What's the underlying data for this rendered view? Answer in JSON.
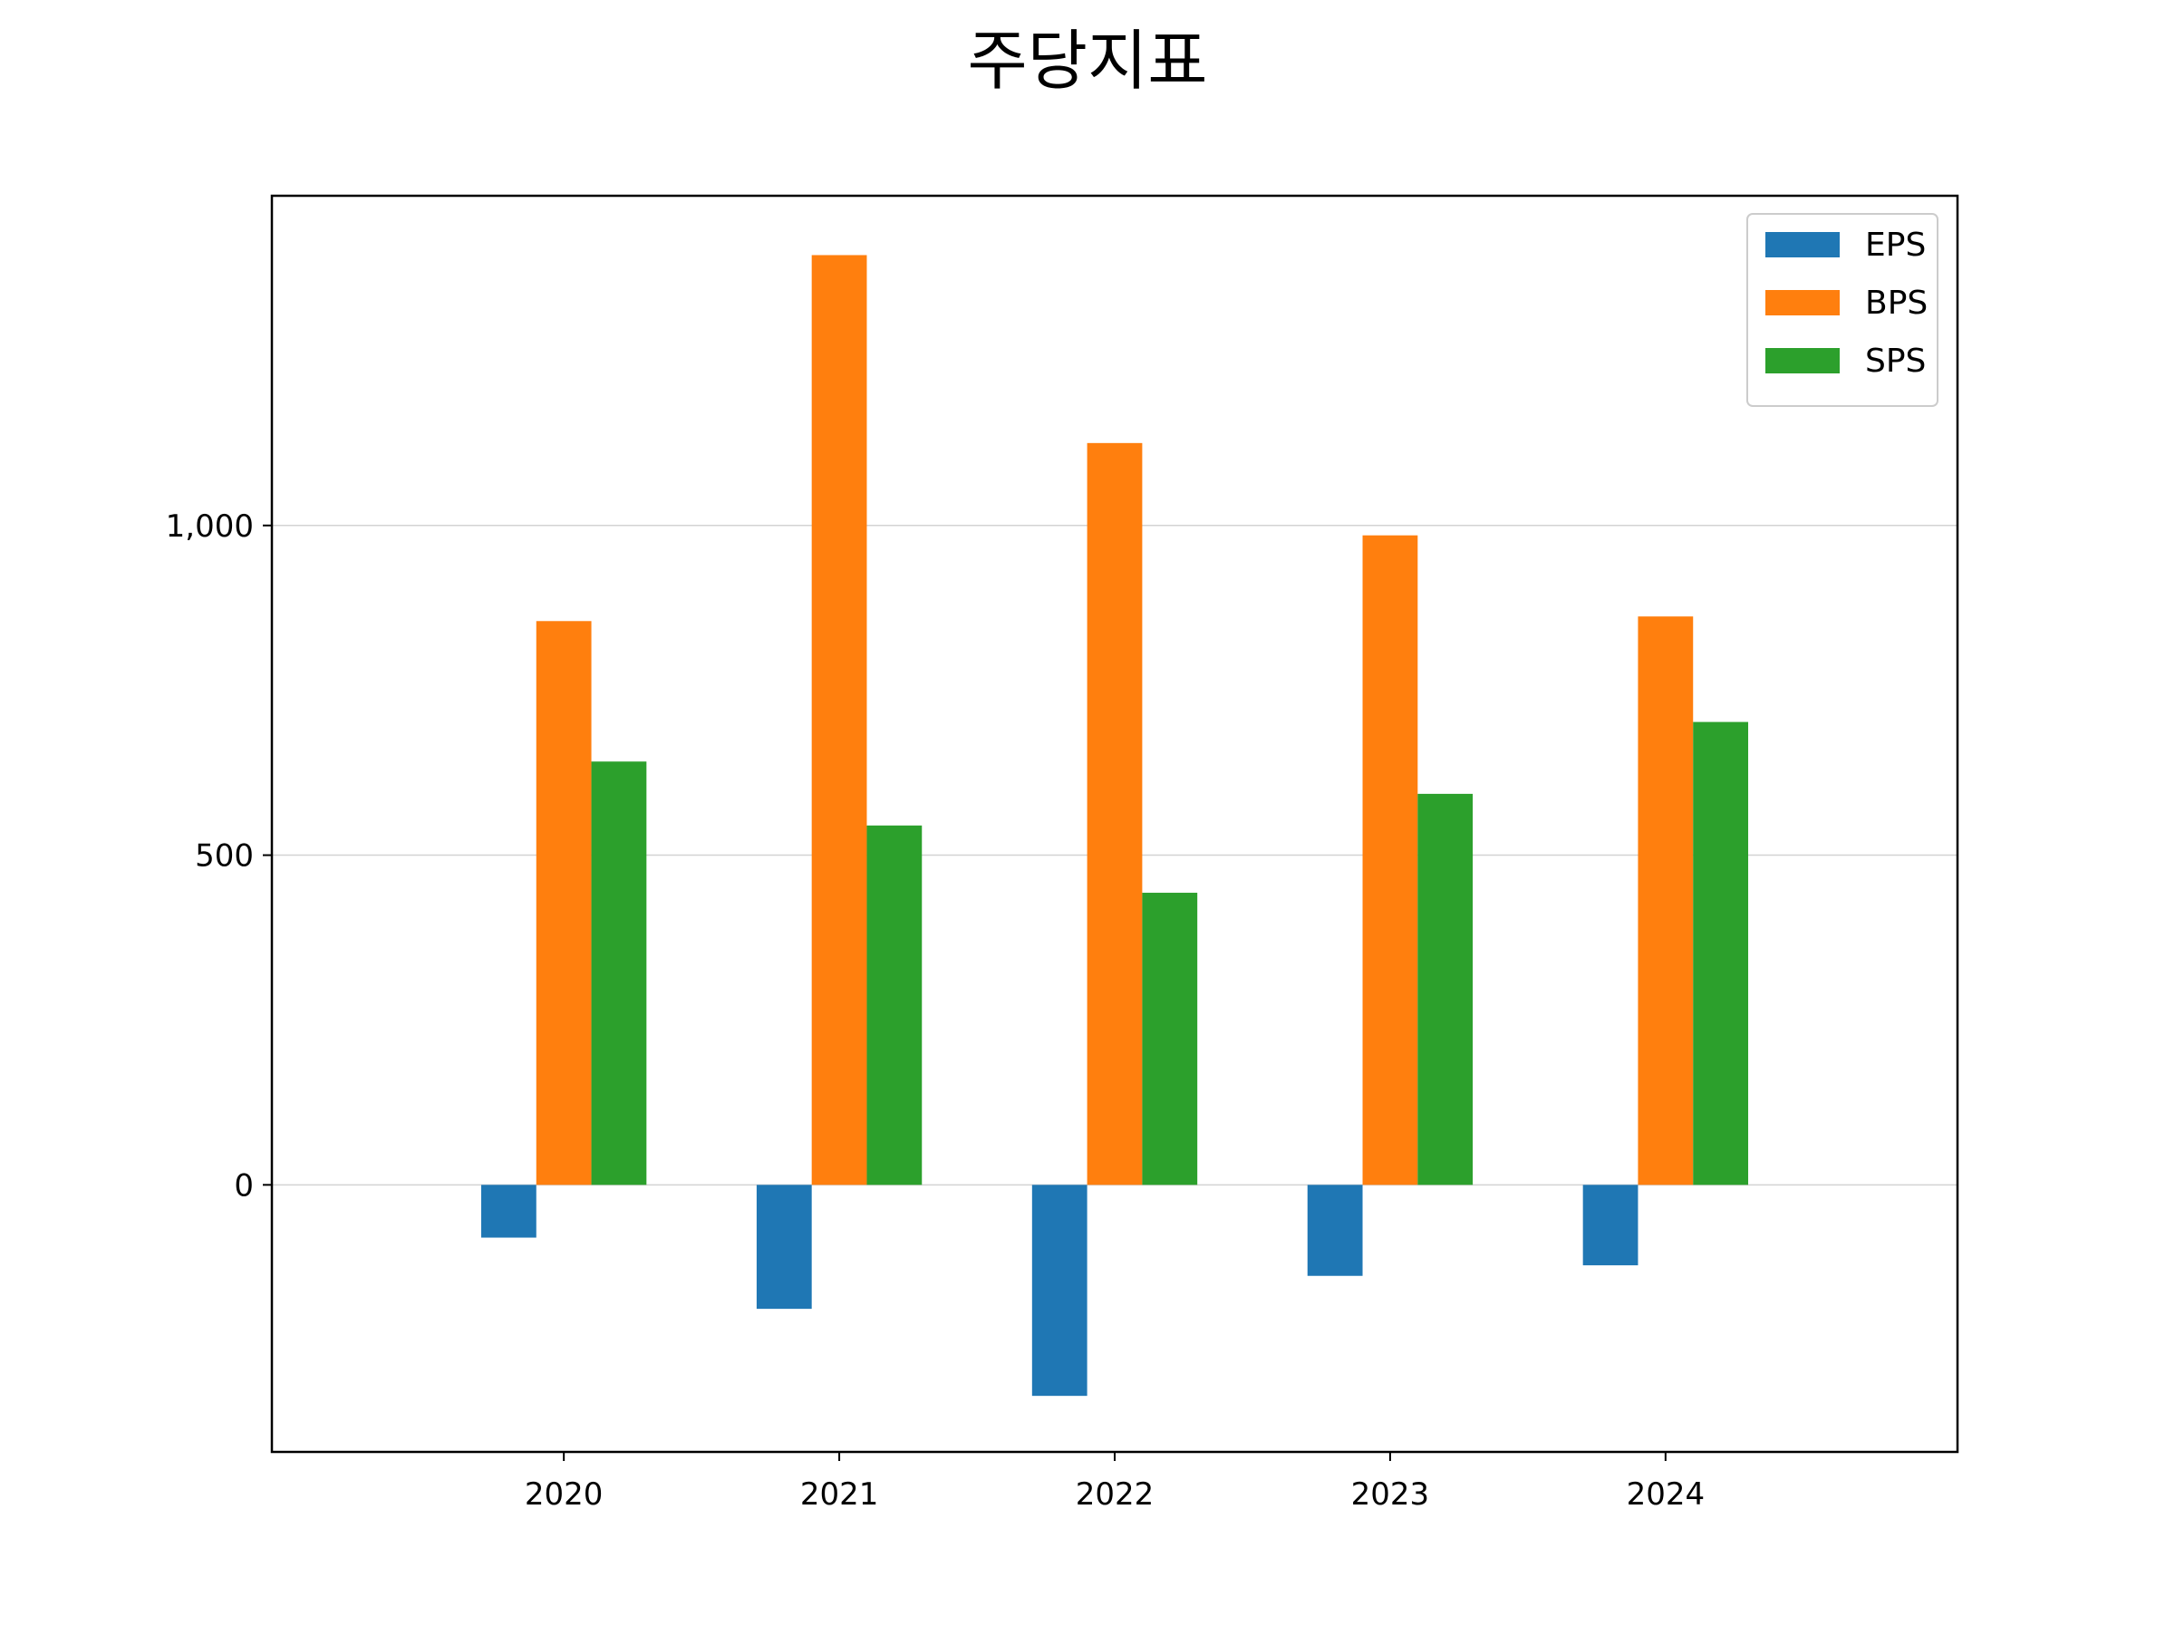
{
  "chart_data": {
    "type": "bar",
    "title": "주당지표",
    "xlabel": "",
    "ylabel": "",
    "categories": [
      "2020",
      "2021",
      "2022",
      "2023",
      "2024"
    ],
    "series": [
      {
        "name": "EPS",
        "color": "#1f77b4",
        "values": [
          -80,
          -188,
          -320,
          -138,
          -122
        ]
      },
      {
        "name": "BPS",
        "color": "#ff7f0e",
        "values": [
          855,
          1410,
          1125,
          985,
          862
        ]
      },
      {
        "name": "SPS",
        "color": "#2ca02c",
        "values": [
          642,
          545,
          443,
          593,
          702
        ]
      }
    ],
    "ylim": [
      -405,
      1500
    ],
    "yticks": [
      0,
      500,
      1000
    ],
    "ytick_labels": [
      "0",
      "500",
      "1,000"
    ],
    "grid": "y-major",
    "legend": "top-right"
  }
}
